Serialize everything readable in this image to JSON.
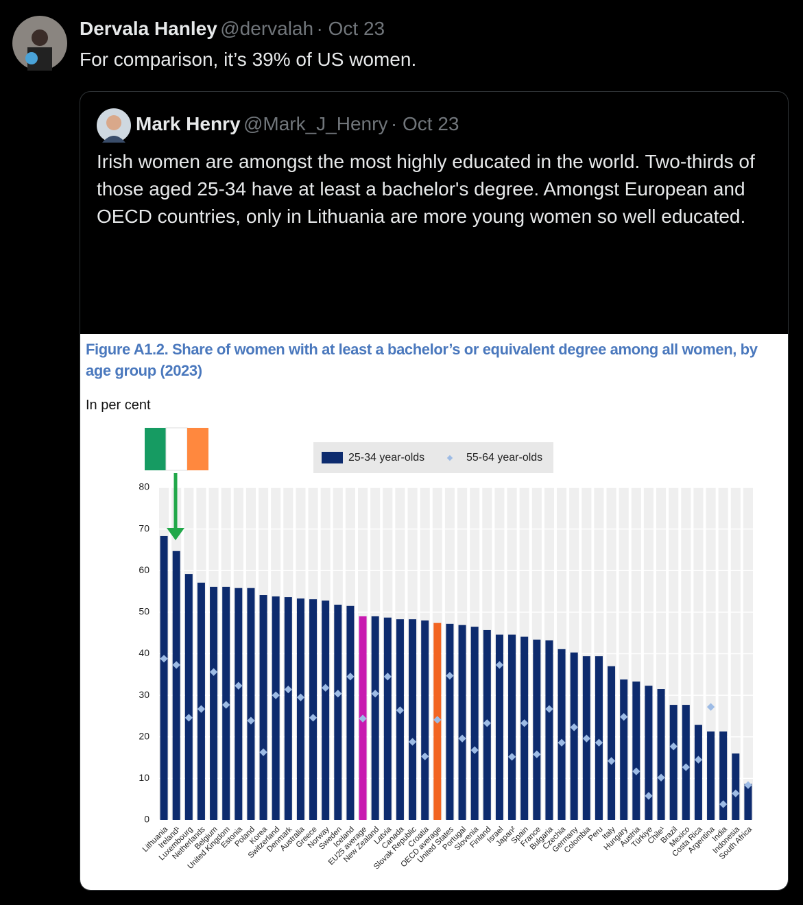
{
  "tweet": {
    "author": "Dervala Hanley",
    "handle": "@dervalah",
    "date": "· Oct 23",
    "text": "For comparison, it’s 39% of US women."
  },
  "quoted_tweet": {
    "author": "Mark Henry",
    "handle": "@Mark_J_Henry",
    "date": "· Oct 23",
    "text": "Irish women are amongst the most highly educated in the world. Two-thirds of those aged 25-34 have at least a bachelor's degree. Amongst European and OECD countries, only in Lithuania are more young women so well educated."
  },
  "chart_data": {
    "type": "bar",
    "title": "Figure A1.2. Share of women with at least a bachelor’s or equivalent degree among all women, by age group (2023)",
    "ylabel": "In per cent",
    "categories": [
      "Lithuania",
      "Ireland¹",
      "Luxembourg",
      "Netherlands",
      "Belgium",
      "United Kingdom",
      "Estonia",
      "Poland",
      "Korea",
      "Switzerland",
      "Denmark",
      "Australia",
      "Greece",
      "Norway",
      "Sweden",
      "Iceland",
      "EU25 average",
      "New Zealand",
      "Latvia",
      "Canada",
      "Slovak Republic",
      "Croatia",
      "OECD average",
      "United States",
      "Portugal",
      "Slovenia",
      "Finland",
      "Israel",
      "Japan²",
      "Spain",
      "France",
      "Bulgaria",
      "Czechia",
      "Germany",
      "Colombia",
      "Peru",
      "Italy",
      "Hungary",
      "Austria",
      "Türkiye",
      "Chile¹",
      "Brazil",
      "Mexico",
      "Costa Rica",
      "Argentina",
      "India",
      "Indonesia",
      "South Africa"
    ],
    "series": [
      {
        "name": "25-34 year-olds",
        "color": "#0d2b6e",
        "colors": [
          "#0d2b6e",
          "#0d2b6e",
          "#0d2b6e",
          "#0d2b6e",
          "#0d2b6e",
          "#0d2b6e",
          "#0d2b6e",
          "#0d2b6e",
          "#0d2b6e",
          "#0d2b6e",
          "#0d2b6e",
          "#0d2b6e",
          "#0d2b6e",
          "#0d2b6e",
          "#0d2b6e",
          "#0d2b6e",
          "#c819b0",
          "#0d2b6e",
          "#0d2b6e",
          "#0d2b6e",
          "#0d2b6e",
          "#0d2b6e",
          "#f26522",
          "#0d2b6e",
          "#0d2b6e",
          "#0d2b6e",
          "#0d2b6e",
          "#0d2b6e",
          "#0d2b6e",
          "#0d2b6e",
          "#0d2b6e",
          "#0d2b6e",
          "#0d2b6e",
          "#0d2b6e",
          "#0d2b6e",
          "#0d2b6e",
          "#0d2b6e",
          "#0d2b6e",
          "#0d2b6e",
          "#0d2b6e",
          "#0d2b6e",
          "#0d2b6e",
          "#0d2b6e",
          "#0d2b6e",
          "#0d2b6e",
          "#0d2b6e",
          "#0d2b6e",
          "#0d2b6e"
        ],
        "values": [
          68.3,
          64.7,
          59.2,
          57.1,
          56.1,
          56.1,
          55.8,
          55.8,
          54.1,
          53.8,
          53.6,
          53.3,
          53.1,
          52.8,
          51.8,
          51.5,
          49.0,
          49.0,
          48.7,
          48.3,
          48.3,
          48.0,
          47.4,
          47.2,
          46.9,
          46.5,
          45.7,
          44.6,
          44.6,
          44.1,
          43.4,
          43.2,
          41.1,
          40.3,
          39.4,
          39.4,
          37.0,
          33.8,
          33.3,
          32.3,
          31.5,
          27.7,
          27.7,
          22.9,
          21.3,
          21.3,
          16.0,
          8.7
        ]
      },
      {
        "name": "55-64 year-olds",
        "color": "#9dbbe5",
        "marker": "diamond",
        "values": [
          38.8,
          37.3,
          24.6,
          26.7,
          35.6,
          27.7,
          32.3,
          23.9,
          16.3,
          30.0,
          31.4,
          29.5,
          24.6,
          31.8,
          30.4,
          34.5,
          24.4,
          30.4,
          34.5,
          26.4,
          18.8,
          15.3,
          24.1,
          34.7,
          19.6,
          16.8,
          23.3,
          37.3,
          15.2,
          23.3,
          15.8,
          26.7,
          18.6,
          22.3,
          19.6,
          18.6,
          14.2,
          24.8,
          11.7,
          5.8,
          10.2,
          17.7,
          12.7,
          14.5,
          27.2,
          3.8,
          6.4,
          8.4
        ]
      }
    ],
    "ylim": [
      0,
      80
    ],
    "yticks": [
      0,
      10,
      20,
      30,
      40,
      50,
      60,
      70,
      80
    ],
    "grid": true
  }
}
